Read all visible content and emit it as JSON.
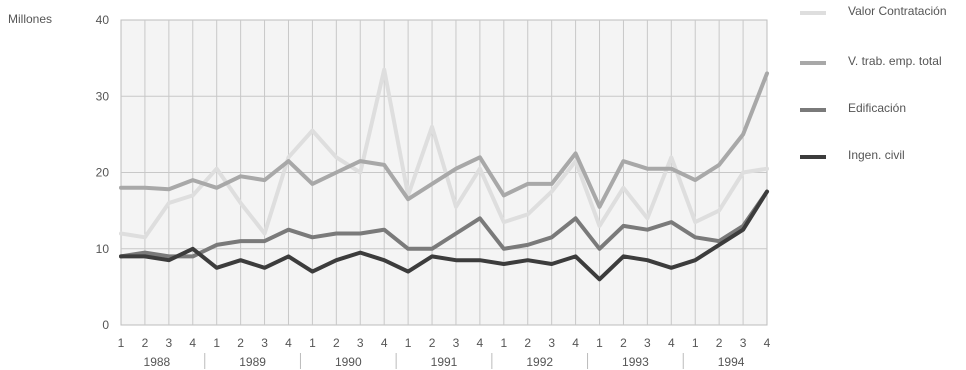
{
  "chart_data": {
    "type": "line",
    "ylabel": "Millones",
    "ylim": [
      0,
      40
    ],
    "yticks": [
      0,
      10,
      20,
      30,
      40
    ],
    "grid": true,
    "legend_position": "right",
    "categories": [
      "1",
      "2",
      "3",
      "4",
      "1",
      "2",
      "3",
      "4",
      "1",
      "2",
      "3",
      "4",
      "1",
      "2",
      "3",
      "4",
      "1",
      "2",
      "3",
      "4",
      "1",
      "2",
      "3",
      "4",
      "1",
      "2",
      "3",
      "4"
    ],
    "year_groups": [
      {
        "label": "1988",
        "start": 0,
        "end": 3
      },
      {
        "label": "1989",
        "start": 4,
        "end": 7
      },
      {
        "label": "1990",
        "start": 8,
        "end": 11
      },
      {
        "label": "1991",
        "start": 12,
        "end": 15
      },
      {
        "label": "1992",
        "start": 16,
        "end": 19
      },
      {
        "label": "1993",
        "start": 20,
        "end": 23
      },
      {
        "label": "1994",
        "start": 24,
        "end": 27
      }
    ],
    "series": [
      {
        "name": "Valor Contratación",
        "color": "#dedede",
        "values": [
          12,
          11.5,
          16,
          17,
          20.5,
          16,
          12,
          22,
          25.5,
          22,
          20,
          33.5,
          17,
          26,
          15.5,
          20.5,
          13.5,
          14.5,
          17.5,
          21.5,
          13,
          18,
          14,
          22,
          13.5,
          15,
          20,
          20.5
        ]
      },
      {
        "name": "V. trab. emp. total",
        "color": "#a8a8a8",
        "values": [
          18,
          18,
          17.8,
          19,
          18,
          19.5,
          19,
          21.5,
          18.5,
          20,
          21.5,
          21,
          16.5,
          18.5,
          20.5,
          22,
          17,
          18.5,
          18.5,
          22.5,
          15.5,
          21.5,
          20.5,
          20.5,
          19,
          21,
          25,
          33
        ]
      },
      {
        "name": "Edificación",
        "color": "#7a7a7a",
        "values": [
          9,
          9.5,
          9,
          9,
          10.5,
          11,
          11,
          12.5,
          11.5,
          12,
          12,
          12.5,
          10,
          10,
          12,
          14,
          10,
          10.5,
          11.5,
          14,
          10,
          13,
          12.5,
          13.5,
          11.5,
          11,
          13,
          17.5
        ]
      },
      {
        "name": "Ingen. civil",
        "color": "#3c3c3c",
        "values": [
          9,
          9,
          8.5,
          10,
          7.5,
          8.5,
          7.5,
          9,
          7,
          8.5,
          9.5,
          8.5,
          7,
          9,
          8.5,
          8.5,
          8,
          8.5,
          8,
          9,
          6,
          9,
          8.5,
          7.5,
          8.5,
          10.5,
          12.5,
          17.5
        ]
      }
    ]
  }
}
